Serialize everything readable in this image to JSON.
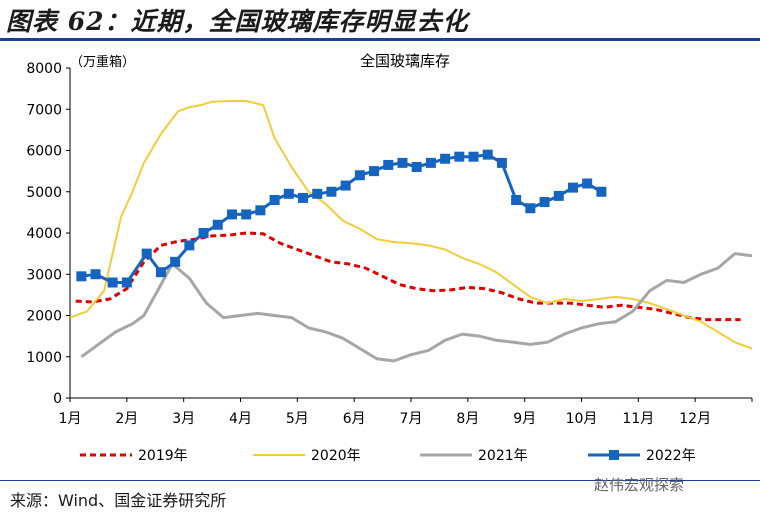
{
  "header": {
    "title": "图表 62：近期，全国玻璃库存明显去化"
  },
  "footer": {
    "source": "来源：Wind、国金证券研究所",
    "watermark": "赵伟宏观探索"
  },
  "colors": {
    "y2019": "#e00000",
    "y2020": "#f2cd3a",
    "y2021": "#a6a6a6",
    "y2022": "#1565c0",
    "rule": "#1c3f94"
  },
  "chart_data": {
    "type": "line",
    "title": "全国玻璃库存",
    "ylabel": "（万重箱）",
    "ylim": [
      0,
      8000
    ],
    "yticks": [
      0,
      1000,
      2000,
      3000,
      4000,
      5000,
      6000,
      7000,
      8000
    ],
    "xlim": [
      0,
      12
    ],
    "categories": [
      "1月",
      "2月",
      "3月",
      "4月",
      "5月",
      "6月",
      "7月",
      "8月",
      "9月",
      "10月",
      "11月",
      "12月"
    ],
    "grid": false,
    "legend_position": "bottom",
    "series": [
      {
        "name": "2019年",
        "x": [
          0.1,
          0.4,
          0.7,
          1.0,
          1.3,
          1.6,
          1.9,
          2.2,
          2.5,
          2.8,
          3.1,
          3.4,
          3.7,
          4.0,
          4.3,
          4.6,
          4.9,
          5.2,
          5.5,
          5.8,
          6.1,
          6.4,
          6.7,
          7.0,
          7.3,
          7.6,
          7.9,
          8.2,
          8.5,
          8.8,
          9.1,
          9.4,
          9.7,
          10.0,
          10.3,
          10.6,
          10.9,
          11.2,
          11.5,
          11.8
        ],
        "y": [
          2350,
          2330,
          2400,
          2650,
          3300,
          3700,
          3800,
          3850,
          3930,
          3950,
          4000,
          3980,
          3750,
          3600,
          3450,
          3300,
          3250,
          3150,
          2950,
          2750,
          2650,
          2600,
          2620,
          2680,
          2650,
          2550,
          2400,
          2300,
          2300,
          2300,
          2250,
          2200,
          2250,
          2200,
          2150,
          2050,
          1950,
          1900,
          1900,
          1900
        ]
      },
      {
        "name": "2020年",
        "x": [
          0.0,
          0.3,
          0.6,
          0.9,
          1.1,
          1.3,
          1.6,
          1.9,
          2.1,
          2.3,
          2.5,
          2.8,
          3.1,
          3.4,
          3.6,
          3.9,
          4.2,
          4.5,
          4.8,
          5.1,
          5.4,
          5.7,
          6.0,
          6.3,
          6.6,
          6.9,
          7.2,
          7.5,
          7.8,
          8.1,
          8.4,
          8.7,
          9.0,
          9.3,
          9.6,
          9.9,
          10.2,
          10.5,
          10.8,
          11.1,
          11.4,
          11.7,
          12.0
        ],
        "y": [
          1950,
          2100,
          2600,
          4400,
          5000,
          5700,
          6400,
          6950,
          7050,
          7100,
          7180,
          7200,
          7200,
          7100,
          6300,
          5600,
          5000,
          4700,
          4300,
          4100,
          3850,
          3780,
          3750,
          3700,
          3600,
          3400,
          3250,
          3050,
          2750,
          2450,
          2300,
          2400,
          2350,
          2400,
          2450,
          2400,
          2300,
          2150,
          2000,
          1850,
          1600,
          1350,
          1200
        ]
      },
      {
        "name": "2021年",
        "x": [
          0.2,
          0.5,
          0.8,
          1.1,
          1.3,
          1.5,
          1.8,
          2.1,
          2.4,
          2.7,
          3.0,
          3.3,
          3.6,
          3.9,
          4.2,
          4.5,
          4.8,
          5.1,
          5.4,
          5.7,
          6.0,
          6.3,
          6.6,
          6.9,
          7.2,
          7.5,
          7.8,
          8.1,
          8.4,
          8.7,
          9.0,
          9.3,
          9.6,
          9.9,
          10.2,
          10.5,
          10.8,
          11.1,
          11.4,
          11.7,
          12.0
        ],
        "y": [
          1000,
          1300,
          1600,
          1800,
          2000,
          2500,
          3250,
          2900,
          2300,
          1950,
          2000,
          2050,
          2000,
          1950,
          1700,
          1600,
          1450,
          1200,
          950,
          900,
          1050,
          1150,
          1400,
          1550,
          1500,
          1400,
          1350,
          1300,
          1350,
          1550,
          1700,
          1800,
          1850,
          2100,
          2600,
          2850,
          2800,
          3000,
          3150,
          3500,
          3450
        ]
      },
      {
        "name": "2022年",
        "x": [
          0.2,
          0.45,
          0.75,
          1.0,
          1.35,
          1.6,
          1.85,
          2.1,
          2.35,
          2.6,
          2.85,
          3.1,
          3.35,
          3.6,
          3.85,
          4.1,
          4.35,
          4.6,
          4.85,
          5.1,
          5.35,
          5.6,
          5.85,
          6.1,
          6.35,
          6.6,
          6.85,
          7.1,
          7.35,
          7.6,
          7.85,
          8.1,
          8.35,
          8.6,
          8.85,
          9.1,
          9.35
        ],
        "y": [
          2950,
          3000,
          2800,
          2800,
          3500,
          3050,
          3300,
          3700,
          4000,
          4200,
          4450,
          4450,
          4550,
          4800,
          4950,
          4850,
          4950,
          5000,
          5150,
          5400,
          5500,
          5650,
          5700,
          5600,
          5700,
          5800,
          5850,
          5850,
          5900,
          5700,
          4800,
          4600,
          4750,
          4900,
          5100,
          5200,
          5000
        ]
      }
    ]
  }
}
